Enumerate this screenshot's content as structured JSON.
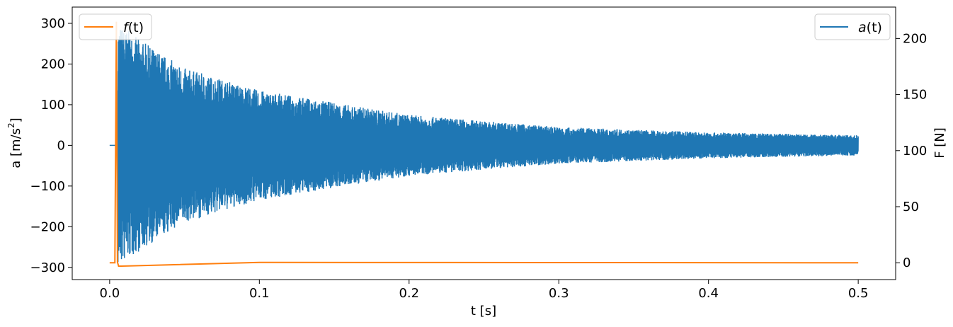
{
  "chart_data": {
    "type": "line",
    "title": "",
    "xlabel": "t [s]",
    "ylabel_left": "a [m/s²]",
    "ylabel_left_base": "a [m/s",
    "ylabel_left_sup": "2",
    "ylabel_left_tail": "]",
    "ylabel_right": "F [N]",
    "xlim": [
      -0.025,
      0.525
    ],
    "ylim_left": [
      -330,
      340
    ],
    "ylim_right": [
      -15,
      228
    ],
    "x_ticks": [
      0.0,
      0.1,
      0.2,
      0.3,
      0.4,
      0.5
    ],
    "x_tick_labels": [
      "0.0",
      "0.1",
      "0.2",
      "0.3",
      "0.4",
      "0.5"
    ],
    "y_left_ticks": [
      300,
      200,
      100,
      0,
      -100,
      -200,
      -300
    ],
    "y_left_tick_labels": [
      "300",
      "200",
      "100",
      "0",
      "−100",
      "−200",
      "−300"
    ],
    "y_right_ticks": [
      200,
      150,
      100,
      50,
      0
    ],
    "y_right_tick_labels": [
      "200",
      "150",
      "100",
      "50",
      "0"
    ],
    "grid": false,
    "series": [
      {
        "name": "a(t)",
        "name_base": "a",
        "name_arg": "(t)",
        "axis": "left",
        "color": "#1f77b4",
        "description_points": {
          "t_start": 0.0,
          "t_impact": 0.0055,
          "t_end": 0.5,
          "peak_envelope": [
            [
              0.006,
              300
            ],
            [
              0.02,
              260
            ],
            [
              0.05,
              190
            ],
            [
              0.1,
              135
            ],
            [
              0.2,
              75
            ],
            [
              0.3,
              45
            ],
            [
              0.4,
              32
            ],
            [
              0.5,
              25
            ]
          ]
        }
      },
      {
        "name": "f(t)",
        "name_base": "f",
        "name_arg": "(t)",
        "axis": "right",
        "color": "#ff7f0e",
        "points": [
          [
            0.0,
            0.0
          ],
          [
            0.0035,
            0.0
          ],
          [
            0.0045,
            215
          ],
          [
            0.0052,
            0.5
          ],
          [
            0.006,
            -3
          ],
          [
            0.008,
            -3
          ],
          [
            0.1,
            0.3
          ],
          [
            0.5,
            0.0
          ]
        ]
      }
    ],
    "legends": [
      {
        "placement": "top-left",
        "entries": [
          "f(t)"
        ]
      },
      {
        "placement": "top-right",
        "entries": [
          "a(t)"
        ]
      }
    ]
  }
}
